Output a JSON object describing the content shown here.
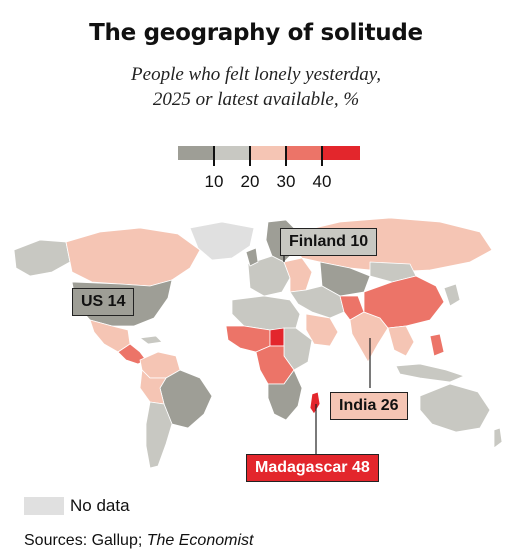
{
  "title": "The geography of solitude",
  "subtitle_line1": "People who felt lonely yesterday,",
  "subtitle_line2": "2025 or latest available, %",
  "legend": {
    "bins": [
      {
        "color": "#9e9e96"
      },
      {
        "color": "#c8c8c2"
      },
      {
        "color": "#f5c5b4"
      },
      {
        "color": "#ec7468"
      },
      {
        "color": "#e3262c"
      }
    ],
    "ticks": [
      "10",
      "20",
      "30",
      "40"
    ]
  },
  "callouts": {
    "finland": "Finland 10",
    "us": "US 14",
    "india": "India 26",
    "madagascar": "Madagascar 48"
  },
  "nodata_label": "No data",
  "source_prefix": "Sources: Gallup; ",
  "source_italic": "The Economist",
  "colors": {
    "grey_dark": "#9e9e96",
    "grey_light": "#c8c8c2",
    "pink": "#f5c5b4",
    "coral": "#ec7468",
    "red": "#e3262c",
    "nodata": "#e0e0e0"
  }
}
